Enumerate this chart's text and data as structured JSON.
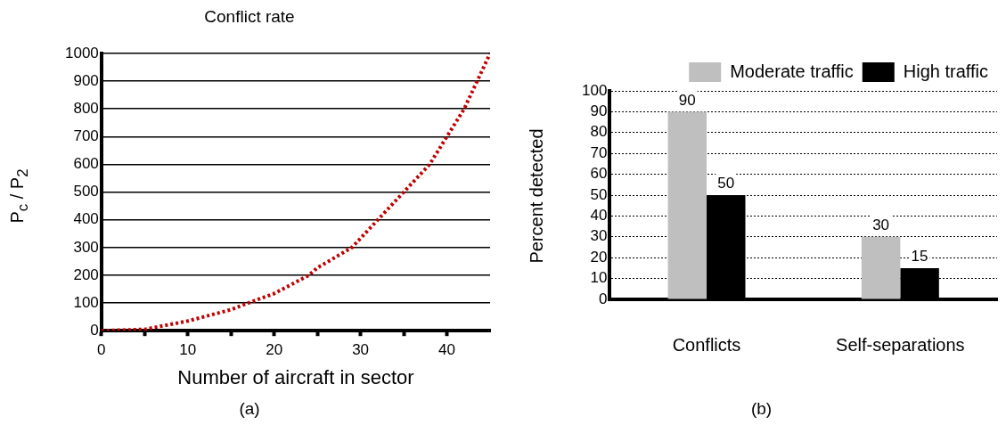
{
  "chart_data": [
    {
      "type": "line",
      "title": "Conflict rate",
      "xlabel": "Number of aircraft in sector",
      "ylabel": "P$_{c}$ / P$_{2}$",
      "annotations": [
        "(a)"
      ],
      "series": [
        {
          "color": "#c00000",
          "x": [
            0,
            5,
            10,
            15,
            17,
            20,
            24,
            25,
            29,
            32,
            35,
            38,
            40,
            42,
            43.5,
            45
          ],
          "values": [
            0,
            5,
            35,
            76,
            100,
            134,
            200,
            227,
            300,
            400,
            500,
            600,
            700,
            800,
            900,
            1000
          ]
        }
      ],
      "xlim": [
        0,
        45
      ],
      "xticks": [
        0,
        {
          "value": 5,
          "label": null
        },
        10,
        {
          "value": 15,
          "label": null
        },
        20,
        {
          "value": 25,
          "label": null
        },
        30,
        {
          "value": 35,
          "label": null
        },
        40
      ],
      "ylim": [
        0,
        1000
      ],
      "yticks": [
        0,
        100,
        200,
        300,
        400,
        500,
        600,
        700,
        800,
        900,
        1000
      ],
      "grid": "y",
      "line_style": "dotted",
      "marker": "none"
    },
    {
      "type": "bar",
      "ylabel": "Percent detected",
      "annotations": [
        "(b)"
      ],
      "categories": [
        "Conflicts",
        "Self-separations"
      ],
      "series": [
        {
          "name": "Moderate traffic",
          "color": "#bfbfbf",
          "values": [
            90,
            30
          ]
        },
        {
          "name": "High traffic",
          "color": "#000000",
          "values": [
            50,
            15
          ]
        }
      ],
      "ylim": [
        0,
        100
      ],
      "yticks": [
        0,
        10,
        20,
        30,
        40,
        50,
        60,
        70,
        80,
        90,
        100
      ],
      "grid": "y",
      "legend": "top right",
      "data_labels": true
    }
  ]
}
